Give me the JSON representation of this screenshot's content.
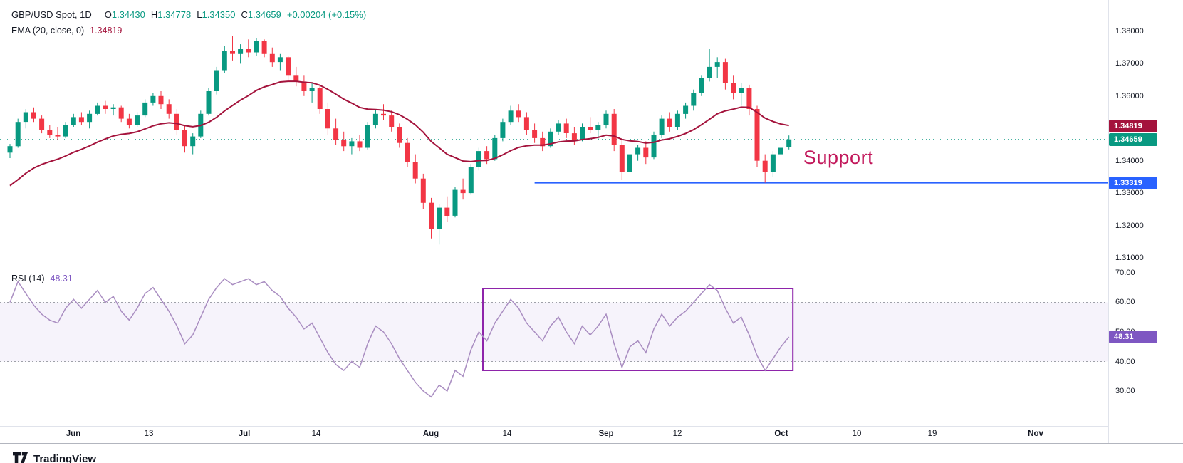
{
  "header": {
    "symbol": "GBP/USD Spot, 1D",
    "open_label": "O",
    "open": "1.34430",
    "high_label": "H",
    "high": "1.34778",
    "low_label": "L",
    "low": "1.34350",
    "close_label": "C",
    "close": "1.34659",
    "change": "+0.00204 (+0.15%)"
  },
  "ema_legend": {
    "label": "EMA (20, close, 0)",
    "value": "1.34819"
  },
  "rsi_legend": {
    "label": "RSI (14)",
    "value": "48.31"
  },
  "support_label": "Support",
  "footer": {
    "brand": "TradingView"
  },
  "colors": {
    "up": "#089981",
    "down": "#f23645",
    "ema": "#a4133c",
    "support_line": "#2962ff",
    "support_text": "#c2185b",
    "rsi_line": "#a98dc1",
    "rsi_band": "rgba(126,87,194,0.07)",
    "rsi_box": "#8e24aa",
    "rsi_badge": "#7e57c2",
    "close_badge": "#089981",
    "axis_text": "#131722"
  },
  "price_axis": {
    "labels": [
      "1.38000",
      "1.37000",
      "1.36000",
      "1.35000",
      "1.34000",
      "1.33000",
      "1.32000",
      "1.31000"
    ],
    "badges": [
      {
        "text": "1.34819",
        "price": 1.34819,
        "color": "#a4133c"
      },
      {
        "text": "1.34659",
        "price": 1.34659,
        "color": "#089981"
      },
      {
        "text": "1.33319",
        "price": 1.33319,
        "color": "#2962ff"
      }
    ]
  },
  "rsi_axis": {
    "labels": [
      "70.00",
      "60.00",
      "50.00",
      "40.00",
      "30.00"
    ],
    "badge": {
      "text": "48.31",
      "value": 48.31,
      "color": "#7e57c2"
    }
  },
  "time_axis": [
    {
      "text": "Jun",
      "index": 8,
      "major": true
    },
    {
      "text": "13",
      "index": 17.5,
      "major": false
    },
    {
      "text": "Jul",
      "index": 29.5,
      "major": true
    },
    {
      "text": "14",
      "index": 38.5,
      "major": false
    },
    {
      "text": "Aug",
      "index": 53,
      "major": true
    },
    {
      "text": "14",
      "index": 62.5,
      "major": false
    },
    {
      "text": "Sep",
      "index": 75,
      "major": true
    },
    {
      "text": "12",
      "index": 84,
      "major": false
    },
    {
      "text": "Oct",
      "index": 97,
      "major": true
    },
    {
      "text": "10",
      "index": 106.5,
      "major": false
    },
    {
      "text": "19",
      "index": 116,
      "major": false
    },
    {
      "text": "Nov",
      "index": 129,
      "major": true
    }
  ],
  "chart_data": {
    "type": "candlestick",
    "title": "GBP/USD Spot, 1D",
    "indicators": [
      "EMA (20, close, 0) = 1.34819",
      "RSI (14) = 48.31"
    ],
    "last_ohlc": {
      "open": 1.3443,
      "high": 1.34778,
      "low": 1.3435,
      "close": 1.34659,
      "change": 0.00204,
      "change_pct": 0.15
    },
    "x_tick_labels": [
      "Jun",
      "13",
      "Jul",
      "14",
      "Aug",
      "14",
      "Sep",
      "12",
      "Oct",
      "10",
      "19",
      "Nov"
    ],
    "price_panel": {
      "y_range": [
        1.30647,
        1.38968
      ],
      "ema_period": 20,
      "ema_seed": 1.331,
      "ema_last": 1.34819,
      "close_line": 1.34659,
      "support_line": {
        "price": 1.33319,
        "start_index": 66
      },
      "ohlc": [
        [
          1.3425,
          1.3452,
          1.3408,
          1.3445
        ],
        [
          1.3445,
          1.353,
          1.344,
          1.352
        ],
        [
          1.352,
          1.356,
          1.35,
          1.355
        ],
        [
          1.355,
          1.3565,
          1.352,
          1.353
        ],
        [
          1.353,
          1.354,
          1.3485,
          1.3495
        ],
        [
          1.3495,
          1.351,
          1.347,
          1.348
        ],
        [
          1.348,
          1.3505,
          1.3465,
          1.3475
        ],
        [
          1.3475,
          1.352,
          1.347,
          1.351
        ],
        [
          1.351,
          1.3545,
          1.3505,
          1.3535
        ],
        [
          1.3535,
          1.355,
          1.351,
          1.352
        ],
        [
          1.352,
          1.3555,
          1.35,
          1.3545
        ],
        [
          1.3545,
          1.358,
          1.354,
          1.357
        ],
        [
          1.357,
          1.3585,
          1.3545,
          1.356
        ],
        [
          1.356,
          1.3575,
          1.354,
          1.3565
        ],
        [
          1.3565,
          1.357,
          1.352,
          1.353
        ],
        [
          1.353,
          1.3545,
          1.35,
          1.351
        ],
        [
          1.351,
          1.355,
          1.3505,
          1.354
        ],
        [
          1.354,
          1.359,
          1.3535,
          1.358
        ],
        [
          1.358,
          1.361,
          1.357,
          1.36
        ],
        [
          1.36,
          1.3615,
          1.356,
          1.3575
        ],
        [
          1.3575,
          1.359,
          1.353,
          1.3545
        ],
        [
          1.3545,
          1.356,
          1.348,
          1.3495
        ],
        [
          1.3495,
          1.351,
          1.3425,
          1.3445
        ],
        [
          1.3445,
          1.3485,
          1.342,
          1.3475
        ],
        [
          1.3475,
          1.3555,
          1.347,
          1.3545
        ],
        [
          1.3545,
          1.3625,
          1.354,
          1.3615
        ],
        [
          1.3615,
          1.369,
          1.3605,
          1.368
        ],
        [
          1.368,
          1.3755,
          1.367,
          1.374
        ],
        [
          1.374,
          1.3785,
          1.371,
          1.373
        ],
        [
          1.373,
          1.376,
          1.37,
          1.3745
        ],
        [
          1.3745,
          1.3775,
          1.372,
          1.3735
        ],
        [
          1.3735,
          1.378,
          1.3725,
          1.377
        ],
        [
          1.377,
          1.3775,
          1.372,
          1.373
        ],
        [
          1.373,
          1.375,
          1.369,
          1.3705
        ],
        [
          1.3705,
          1.373,
          1.368,
          1.372
        ],
        [
          1.372,
          1.3725,
          1.365,
          1.3665
        ],
        [
          1.3665,
          1.369,
          1.363,
          1.3645
        ],
        [
          1.3645,
          1.3665,
          1.36,
          1.3615
        ],
        [
          1.3615,
          1.364,
          1.358,
          1.3625
        ],
        [
          1.3625,
          1.363,
          1.3545,
          1.356
        ],
        [
          1.356,
          1.358,
          1.348,
          1.35
        ],
        [
          1.35,
          1.353,
          1.345,
          1.3465
        ],
        [
          1.3465,
          1.349,
          1.343,
          1.3445
        ],
        [
          1.3445,
          1.347,
          1.342,
          1.346
        ],
        [
          1.346,
          1.348,
          1.343,
          1.344
        ],
        [
          1.344,
          1.352,
          1.3435,
          1.351
        ],
        [
          1.351,
          1.356,
          1.35,
          1.3545
        ],
        [
          1.3545,
          1.3575,
          1.3525,
          1.354
        ],
        [
          1.354,
          1.3555,
          1.349,
          1.3505
        ],
        [
          1.3505,
          1.3515,
          1.344,
          1.3455
        ],
        [
          1.3455,
          1.347,
          1.338,
          1.3395
        ],
        [
          1.3395,
          1.342,
          1.333,
          1.3345
        ],
        [
          1.3345,
          1.336,
          1.325,
          1.327
        ],
        [
          1.327,
          1.3285,
          1.316,
          1.319
        ],
        [
          1.319,
          1.3265,
          1.3141,
          1.3255
        ],
        [
          1.3255,
          1.329,
          1.321,
          1.323
        ],
        [
          1.323,
          1.332,
          1.3225,
          1.331
        ],
        [
          1.331,
          1.3345,
          1.328,
          1.33
        ],
        [
          1.33,
          1.339,
          1.3295,
          1.338
        ],
        [
          1.338,
          1.344,
          1.337,
          1.343
        ],
        [
          1.343,
          1.3445,
          1.339,
          1.3405
        ],
        [
          1.3405,
          1.348,
          1.34,
          1.347
        ],
        [
          1.347,
          1.353,
          1.346,
          1.352
        ],
        [
          1.352,
          1.357,
          1.351,
          1.3555
        ],
        [
          1.3555,
          1.3575,
          1.352,
          1.3535
        ],
        [
          1.3535,
          1.355,
          1.348,
          1.3495
        ],
        [
          1.3495,
          1.3515,
          1.3455,
          1.347
        ],
        [
          1.347,
          1.349,
          1.343,
          1.3445
        ],
        [
          1.3445,
          1.35,
          1.344,
          1.349
        ],
        [
          1.349,
          1.3525,
          1.348,
          1.3515
        ],
        [
          1.3515,
          1.353,
          1.347,
          1.3485
        ],
        [
          1.3485,
          1.3505,
          1.345,
          1.3465
        ],
        [
          1.3465,
          1.3515,
          1.346,
          1.3505
        ],
        [
          1.3505,
          1.3535,
          1.3485,
          1.3495
        ],
        [
          1.3495,
          1.352,
          1.3465,
          1.351
        ],
        [
          1.351,
          1.3555,
          1.35,
          1.3545
        ],
        [
          1.3545,
          1.356,
          1.343,
          1.345
        ],
        [
          1.345,
          1.347,
          1.334,
          1.3365
        ],
        [
          1.3365,
          1.343,
          1.3355,
          1.342
        ],
        [
          1.342,
          1.345,
          1.34,
          1.344
        ],
        [
          1.344,
          1.346,
          1.339,
          1.341
        ],
        [
          1.341,
          1.349,
          1.3405,
          1.348
        ],
        [
          1.348,
          1.354,
          1.347,
          1.353
        ],
        [
          1.353,
          1.355,
          1.349,
          1.3505
        ],
        [
          1.3505,
          1.3555,
          1.3495,
          1.3545
        ],
        [
          1.3545,
          1.358,
          1.353,
          1.357
        ],
        [
          1.357,
          1.362,
          1.3555,
          1.361
        ],
        [
          1.361,
          1.3665,
          1.36,
          1.3655
        ],
        [
          1.3655,
          1.3745,
          1.3645,
          1.369
        ],
        [
          1.369,
          1.372,
          1.3655,
          1.3705
        ],
        [
          1.3705,
          1.3715,
          1.362,
          1.364
        ],
        [
          1.364,
          1.3665,
          1.359,
          1.361
        ],
        [
          1.361,
          1.364,
          1.357,
          1.3625
        ],
        [
          1.3625,
          1.3635,
          1.354,
          1.356
        ],
        [
          1.356,
          1.357,
          1.338,
          1.34
        ],
        [
          1.34,
          1.342,
          1.3332,
          1.3365
        ],
        [
          1.3365,
          1.343,
          1.335,
          1.342
        ],
        [
          1.342,
          1.345,
          1.3405,
          1.344
        ],
        [
          1.3443,
          1.3478,
          1.3435,
          1.3466
        ]
      ]
    },
    "rsi_panel": {
      "period": 14,
      "y_range": [
        18.2,
        71.2
      ],
      "bands": [
        60,
        40
      ],
      "last": 48.31,
      "highlight_box": {
        "start_index": 59.5,
        "end_index": 98.5,
        "rsi_high": 64.7,
        "rsi_low": 37
      },
      "values": [
        60,
        67,
        63,
        59,
        56,
        54,
        53,
        58,
        61,
        58,
        61,
        64,
        60,
        62,
        57,
        54,
        58,
        63,
        65,
        61,
        57,
        52,
        46,
        49,
        55,
        61,
        65,
        68,
        66,
        67,
        68,
        66,
        67,
        64,
        62,
        58,
        55,
        51,
        53,
        48,
        43,
        39,
        37,
        40,
        38,
        46,
        52,
        50,
        46,
        41,
        37,
        33,
        30,
        28,
        32,
        30,
        37,
        35,
        44,
        50,
        47,
        53,
        57,
        61,
        58,
        53,
        50,
        47,
        52,
        55,
        50,
        46,
        52,
        49,
        52,
        56,
        46,
        38,
        45,
        47,
        43,
        51,
        56,
        52,
        55,
        57,
        60,
        63,
        66,
        64,
        58,
        53,
        55,
        49,
        42,
        37,
        41,
        45,
        48.31
      ]
    }
  }
}
